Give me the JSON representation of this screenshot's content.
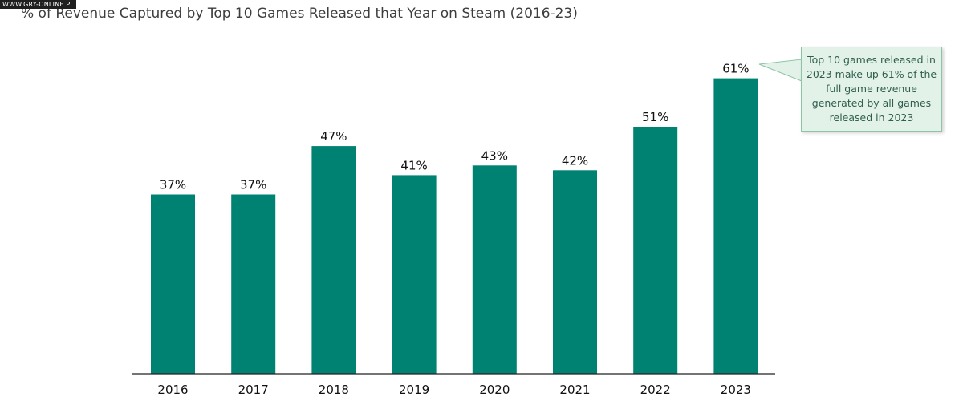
{
  "watermark": "WWW.GRY-ONLINE.PL",
  "title": "% of Revenue Captured by Top 10 Games Released that Year on Steam (2016-23)",
  "colors": {
    "bar": "#008272",
    "axis": "#222222",
    "callout_fill": "#e3f2e9",
    "callout_border": "#8ec4a5",
    "callout_text": "#2f5e4d"
  },
  "chart_data": {
    "type": "bar",
    "title": "% of Revenue Captured by Top 10 Games Released that Year on Steam (2016-23)",
    "xlabel": "",
    "ylabel": "",
    "categories": [
      "2016",
      "2017",
      "2018",
      "2019",
      "2020",
      "2021",
      "2022",
      "2023"
    ],
    "values": [
      37,
      37,
      47,
      41,
      43,
      42,
      51,
      61
    ],
    "value_labels": [
      "37%",
      "37%",
      "47%",
      "41%",
      "43%",
      "42%",
      "51%",
      "61%"
    ],
    "unit": "%",
    "grid": false,
    "legend": "none",
    "annotation": {
      "target_category": "2023",
      "text": "Top 10 games released in 2023 make up 61% of the full game revenue generated by all games released in 2023"
    }
  }
}
